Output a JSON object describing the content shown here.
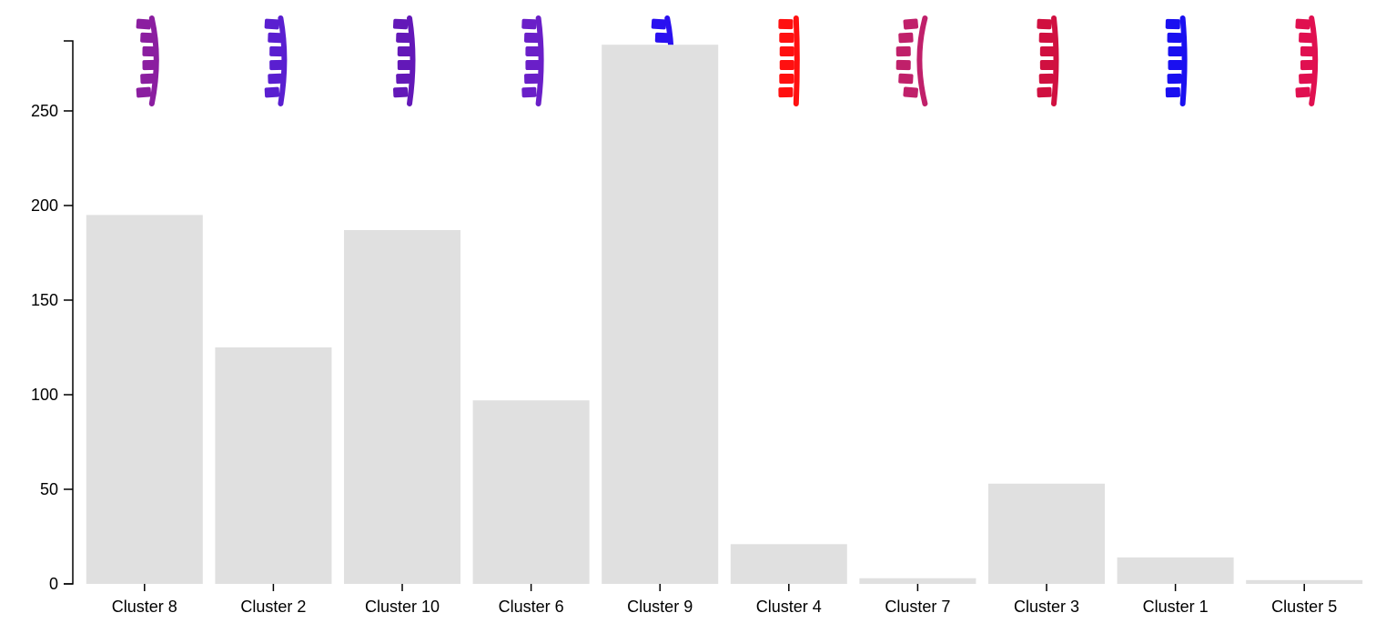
{
  "chart_data": {
    "type": "bar",
    "categories": [
      "Cluster 8",
      "Cluster 2",
      "Cluster 10",
      "Cluster 6",
      "Cluster 9",
      "Cluster 4",
      "Cluster 7",
      "Cluster 3",
      "Cluster 1",
      "Cluster 5"
    ],
    "values": [
      195,
      125,
      187,
      97,
      285,
      21,
      3,
      53,
      14,
      2
    ],
    "title": "",
    "xlabel": "",
    "ylabel": "",
    "ylim": [
      0,
      287
    ],
    "yticks": [
      0,
      50,
      100,
      150,
      200,
      250
    ],
    "grid": false,
    "bar_color": "#e0e0e0",
    "thumbnails": {
      "kind": "spine-glyph",
      "colors": [
        "#8b1ea0",
        "#5a1fd0",
        "#6318b8",
        "#6a1fc8",
        "#2a10f0",
        "#ff1010",
        "#c0206a",
        "#d01040",
        "#1a10f0",
        "#e01050"
      ]
    }
  }
}
